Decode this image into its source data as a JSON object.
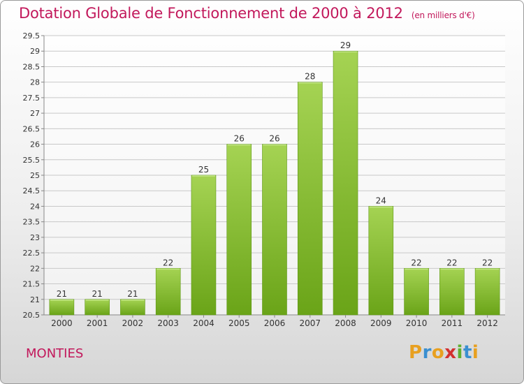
{
  "title": "Dotation Globale de Fonctionnement de 2000 à 2012",
  "subtitle": "(en milliers d'€)",
  "commune": "MONTIES",
  "brand": {
    "letters": [
      "P",
      "r",
      "o",
      "x",
      "i",
      "t",
      "i"
    ],
    "colors": [
      "#e8a020",
      "#3a8fd0",
      "#e8a020",
      "#d23030",
      "#60b030",
      "#3a8fd0",
      "#e8a020"
    ]
  },
  "colors": {
    "title": "#c2185b",
    "bar_light": "#a5d353",
    "bar_dark": "#6aa418",
    "grid": "#c8c8c8"
  },
  "chart_data": {
    "type": "bar",
    "categories": [
      "2000",
      "2001",
      "2002",
      "2003",
      "2004",
      "2005",
      "2006",
      "2007",
      "2008",
      "2009",
      "2010",
      "2011",
      "2012"
    ],
    "values": [
      21,
      21,
      21,
      22,
      25,
      26,
      26,
      28,
      29,
      24,
      22,
      22,
      22
    ],
    "data_labels": [
      "21",
      "21",
      "21",
      "22",
      "25",
      "26",
      "26",
      "28",
      "29",
      "24",
      "22",
      "22",
      "22"
    ],
    "yticks": [
      "20.5",
      "21",
      "21.5",
      "22",
      "22.5",
      "23",
      "23.5",
      "24",
      "24.5",
      "25",
      "25.5",
      "26",
      "26.5",
      "27",
      "27.5",
      "28",
      "28.5",
      "29",
      "29.5"
    ],
    "ylim": [
      20.5,
      29.5
    ],
    "grid": true,
    "xlabel": "",
    "ylabel": ""
  }
}
